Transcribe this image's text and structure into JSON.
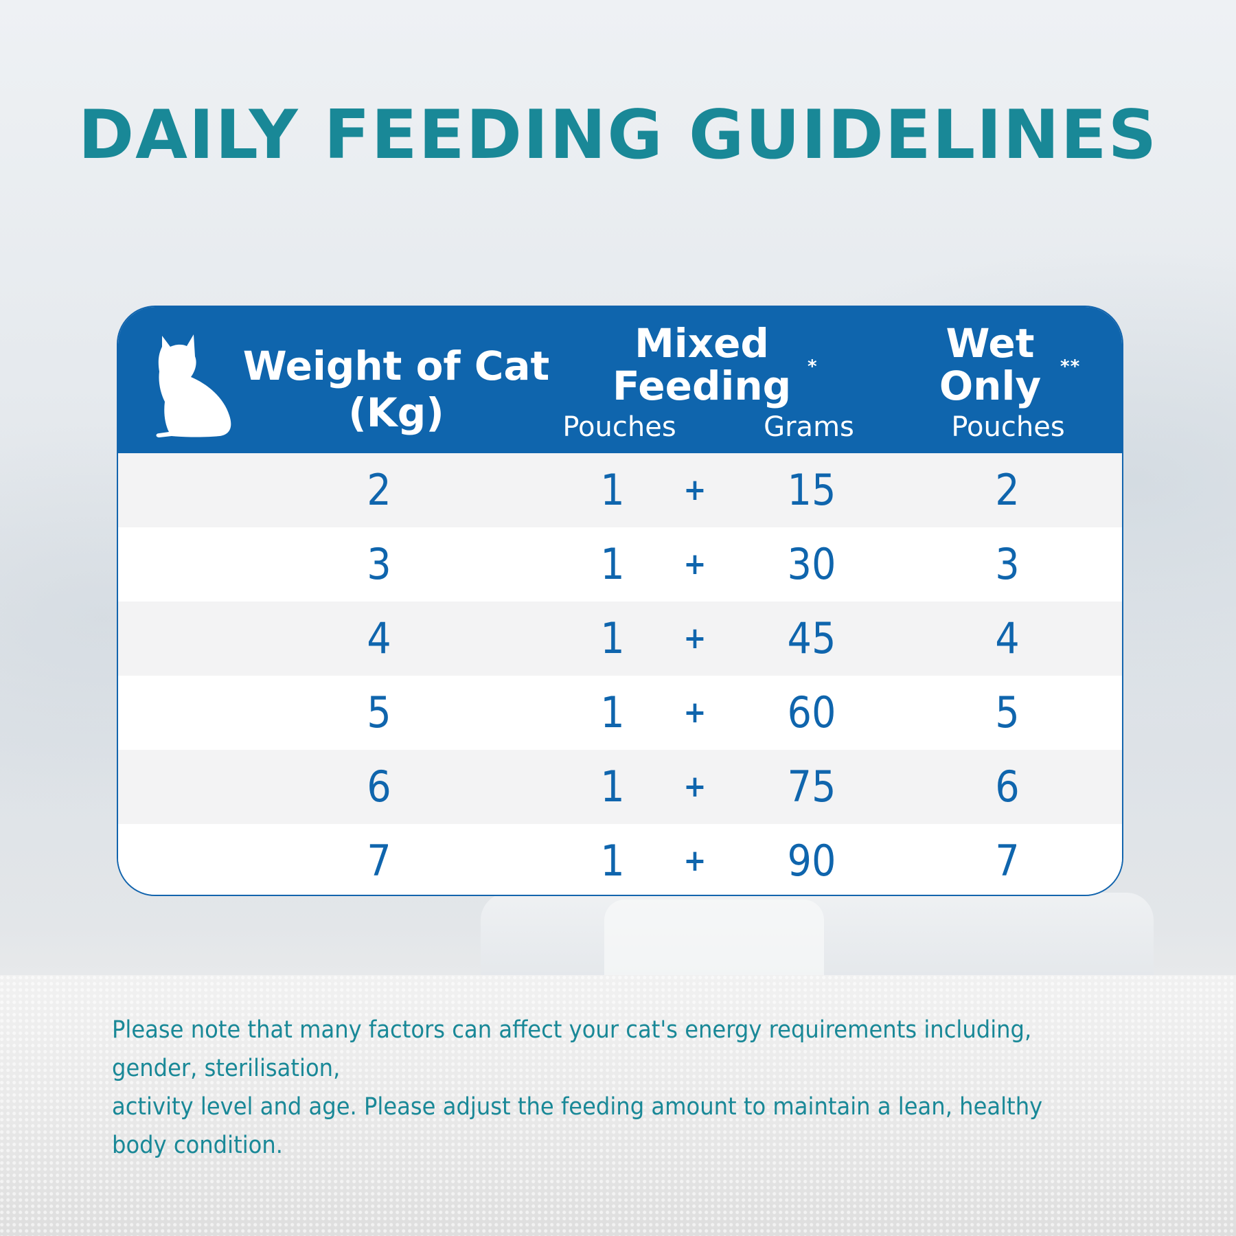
{
  "title": "DAILY FEEDING GUIDELINES",
  "icons": {
    "cat": "cat-silhouette-icon"
  },
  "colors": {
    "teal": "#198897",
    "blue": "#0f65ad",
    "row_alt": "#f3f3f4"
  },
  "table": {
    "headers": {
      "weight_line1": "Weight of Cat",
      "weight_line2": "(Kg)",
      "mixed_line1": "Mixed",
      "mixed_line2": "Feeding",
      "mixed_mark": "*",
      "wet_line1": "Wet",
      "wet_line2": "Only",
      "wet_mark": "**",
      "sub_mixed_pouches": "Pouches",
      "sub_mixed_grams": "Grams",
      "sub_wet_pouches": "Pouches"
    },
    "rows": [
      {
        "weight": "2",
        "pouches": "1",
        "plus": "+",
        "grams": "15",
        "wet": "2"
      },
      {
        "weight": "3",
        "pouches": "1",
        "plus": "+",
        "grams": "30",
        "wet": "3"
      },
      {
        "weight": "4",
        "pouches": "1",
        "plus": "+",
        "grams": "45",
        "wet": "4"
      },
      {
        "weight": "5",
        "pouches": "1",
        "plus": "+",
        "grams": "60",
        "wet": "5"
      },
      {
        "weight": "6",
        "pouches": "1",
        "plus": "+",
        "grams": "75",
        "wet": "6"
      },
      {
        "weight": "7",
        "pouches": "1",
        "plus": "+",
        "grams": "90",
        "wet": "7"
      }
    ]
  },
  "note": {
    "line1": "Please note that many factors can affect your cat's energy requirements including, gender, sterilisation,",
    "line2": "activity level and age. Please adjust the feeding amount to maintain a lean, healthy body condition."
  }
}
